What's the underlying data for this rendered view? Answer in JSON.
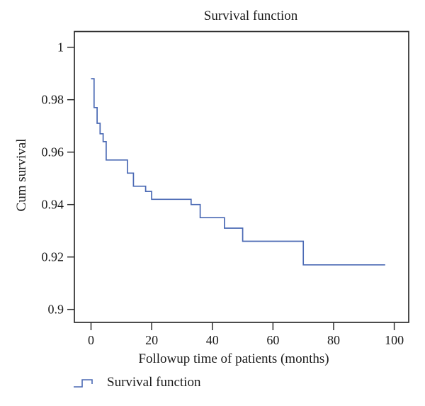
{
  "chart_data": {
    "type": "line",
    "subtype": "kaplan-meier-step",
    "title": "Survival function",
    "xlabel": "Followup time of patients (months)",
    "ylabel": "Cum survival",
    "xlim": [
      0,
      100
    ],
    "ylim": [
      0.9,
      1.0
    ],
    "x_tick_values": [
      0,
      20,
      40,
      60,
      80,
      100
    ],
    "x_tick_labels": [
      "0",
      "20",
      "40",
      "60",
      "80",
      "100"
    ],
    "y_tick_values": [
      1,
      0.98,
      0.96,
      0.94,
      0.92,
      0.9
    ],
    "y_tick_labels": [
      "1",
      "0.98",
      "0.96",
      "0.94",
      "0.92",
      "0.9"
    ],
    "grid": false,
    "legend": {
      "label": "Survival function",
      "position": "bottom-left"
    },
    "series": [
      {
        "name": "Survival function",
        "color": "#4a69b4",
        "end_time": 97,
        "points": [
          [
            0,
            0.988
          ],
          [
            1,
            0.977
          ],
          [
            2,
            0.971
          ],
          [
            3,
            0.967
          ],
          [
            4,
            0.964
          ],
          [
            5,
            0.957
          ],
          [
            12,
            0.952
          ],
          [
            14,
            0.947
          ],
          [
            18,
            0.945
          ],
          [
            20,
            0.942
          ],
          [
            33,
            0.94
          ],
          [
            36,
            0.935
          ],
          [
            44,
            0.931
          ],
          [
            50,
            0.926
          ],
          [
            70,
            0.917
          ]
        ]
      }
    ],
    "frame_color": "#2d2d2d",
    "text_color": "#1a1a1a",
    "background_color": "#ffffff"
  }
}
